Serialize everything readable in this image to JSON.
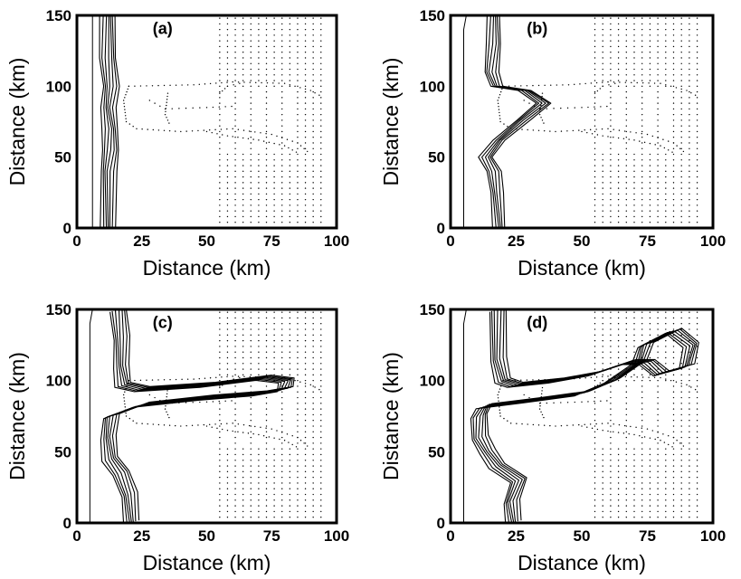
{
  "chart_data": [
    {
      "type": "contour",
      "panel_label": "(a)",
      "xlabel": "Distance (km)",
      "ylabel": "Distance (km)",
      "xlim": [
        0,
        100
      ],
      "ylim": [
        0,
        150
      ],
      "xticks": [
        "0",
        "25",
        "50",
        "75",
        "100"
      ],
      "yticks": [
        "0",
        "50",
        "100",
        "150"
      ],
      "front_centerline": [
        [
          12,
          0
        ],
        [
          12,
          40
        ],
        [
          13,
          55
        ],
        [
          13,
          70
        ],
        [
          12,
          85
        ],
        [
          13,
          100
        ],
        [
          12,
          120
        ],
        [
          12,
          150
        ]
      ],
      "front_offsets": [
        -3,
        -2,
        -1,
        0,
        1,
        2,
        3
      ]
    },
    {
      "type": "contour",
      "panel_label": "(b)",
      "xlabel": "Distance (km)",
      "ylabel": "Distance (km)",
      "xlim": [
        0,
        100
      ],
      "ylim": [
        0,
        150
      ],
      "xticks": [
        "0",
        "25",
        "50",
        "75",
        "100"
      ],
      "yticks": [
        "0",
        "50",
        "100",
        "150"
      ],
      "front_centerline": [
        [
          18,
          0
        ],
        [
          17,
          25
        ],
        [
          16,
          40
        ],
        [
          13,
          50
        ],
        [
          18,
          62
        ],
        [
          27,
          76
        ],
        [
          35,
          88
        ],
        [
          28,
          97
        ],
        [
          17,
          100
        ],
        [
          15,
          110
        ],
        [
          16,
          130
        ],
        [
          16,
          150
        ]
      ],
      "front_offsets": [
        -2,
        -1,
        0,
        1,
        2,
        3
      ]
    },
    {
      "type": "contour",
      "panel_label": "(c)",
      "xlabel": "Distance (km)",
      "ylabel": "Distance (km)",
      "xlim": [
        0,
        100
      ],
      "ylim": [
        0,
        150
      ],
      "xticks": [
        "0",
        "25",
        "50",
        "75",
        "100"
      ],
      "yticks": [
        "0",
        "50",
        "100",
        "150"
      ],
      "front_centerline": [
        [
          21,
          0
        ],
        [
          20,
          20
        ],
        [
          17,
          35
        ],
        [
          13,
          45
        ],
        [
          12,
          60
        ],
        [
          13,
          75
        ],
        [
          25,
          83
        ],
        [
          50,
          88
        ],
        [
          70,
          91
        ],
        [
          80,
          94
        ],
        [
          81,
          100
        ],
        [
          72,
          102
        ],
        [
          50,
          97
        ],
        [
          25,
          94
        ],
        [
          18,
          97
        ],
        [
          17,
          110
        ],
        [
          17,
          130
        ],
        [
          16,
          150
        ]
      ],
      "front_offsets": [
        -3,
        -2,
        -1,
        0,
        1,
        2,
        3
      ]
    },
    {
      "type": "contour",
      "panel_label": "(d)",
      "xlabel": "Distance (km)",
      "ylabel": "Distance (km)",
      "xlim": [
        0,
        100
      ],
      "ylim": [
        0,
        150
      ],
      "xticks": [
        "0",
        "25",
        "50",
        "75",
        "100"
      ],
      "yticks": [
        "0",
        "50",
        "100",
        "150"
      ],
      "front_centerline": [
        [
          24,
          0
        ],
        [
          23,
          15
        ],
        [
          26,
          30
        ],
        [
          18,
          40
        ],
        [
          14,
          50
        ],
        [
          11,
          60
        ],
        [
          11,
          75
        ],
        [
          13,
          82
        ],
        [
          30,
          86
        ],
        [
          50,
          91
        ],
        [
          62,
          100
        ],
        [
          72,
          113
        ],
        [
          74,
          125
        ],
        [
          85,
          135
        ],
        [
          92,
          125
        ],
        [
          90,
          110
        ],
        [
          80,
          105
        ],
        [
          75,
          113
        ],
        [
          68,
          113
        ],
        [
          55,
          105
        ],
        [
          40,
          100
        ],
        [
          25,
          97
        ],
        [
          20,
          100
        ],
        [
          18,
          115
        ],
        [
          18,
          150
        ]
      ],
      "front_offsets": [
        -3,
        -2,
        -1,
        0,
        1,
        2,
        3
      ]
    }
  ]
}
